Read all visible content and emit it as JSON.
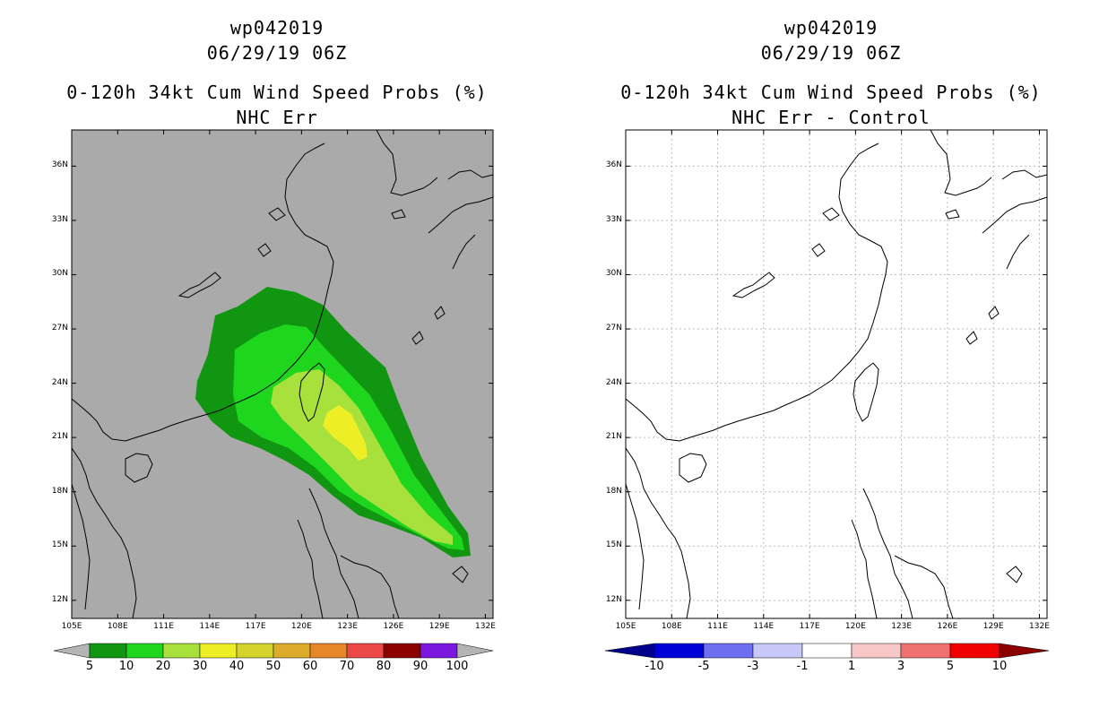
{
  "left": {
    "storm_id": "wp042019",
    "datetime": "06/29/19 06Z",
    "product": "0-120h 34kt Cum Wind Speed Probs (%)",
    "subtitle": "NHC Err",
    "colorbar": {
      "labels": [
        "5",
        "10",
        "20",
        "30",
        "40",
        "50",
        "60",
        "70",
        "80",
        "90",
        "100"
      ],
      "colors": [
        "#119611",
        "#1ed61e",
        "#a8e03c",
        "#eeee26",
        "#d4d42c",
        "#dcac2a",
        "#e8862a",
        "#ec4848",
        "#8c0000",
        "#7a18e0"
      ],
      "end_color": "#b4b4b4"
    },
    "shading": {
      "ocean_bg": "#aaaaaa",
      "prob_5": "#119611",
      "prob_10": "#1ed61e",
      "prob_20": "#a8e03c",
      "prob_30": "#eeee26"
    }
  },
  "right": {
    "storm_id": "wp042019",
    "datetime": "06/29/19 06Z",
    "product": "0-120h 34kt Cum Wind Speed Probs (%)",
    "subtitle": "NHC Err - Control",
    "colorbar": {
      "labels": [
        "-10",
        "-5",
        "-3",
        "-1",
        "1",
        "3",
        "5",
        "10"
      ],
      "colors": [
        "#0000d8",
        "#6e6ef0",
        "#c8c8f8",
        "#ffffff",
        "#f8c8c8",
        "#f07070",
        "#f00000"
      ],
      "low_end_color": "#00008c",
      "high_end_color": "#8c0000"
    }
  },
  "axes": {
    "lat_labels": [
      "36N",
      "33N",
      "30N",
      "27N",
      "24N",
      "21N",
      "18N",
      "15N",
      "12N"
    ],
    "lon_labels": [
      "105E",
      "108E",
      "111E",
      "114E",
      "117E",
      "120E",
      "123E",
      "126E",
      "129E",
      "132E"
    ]
  }
}
